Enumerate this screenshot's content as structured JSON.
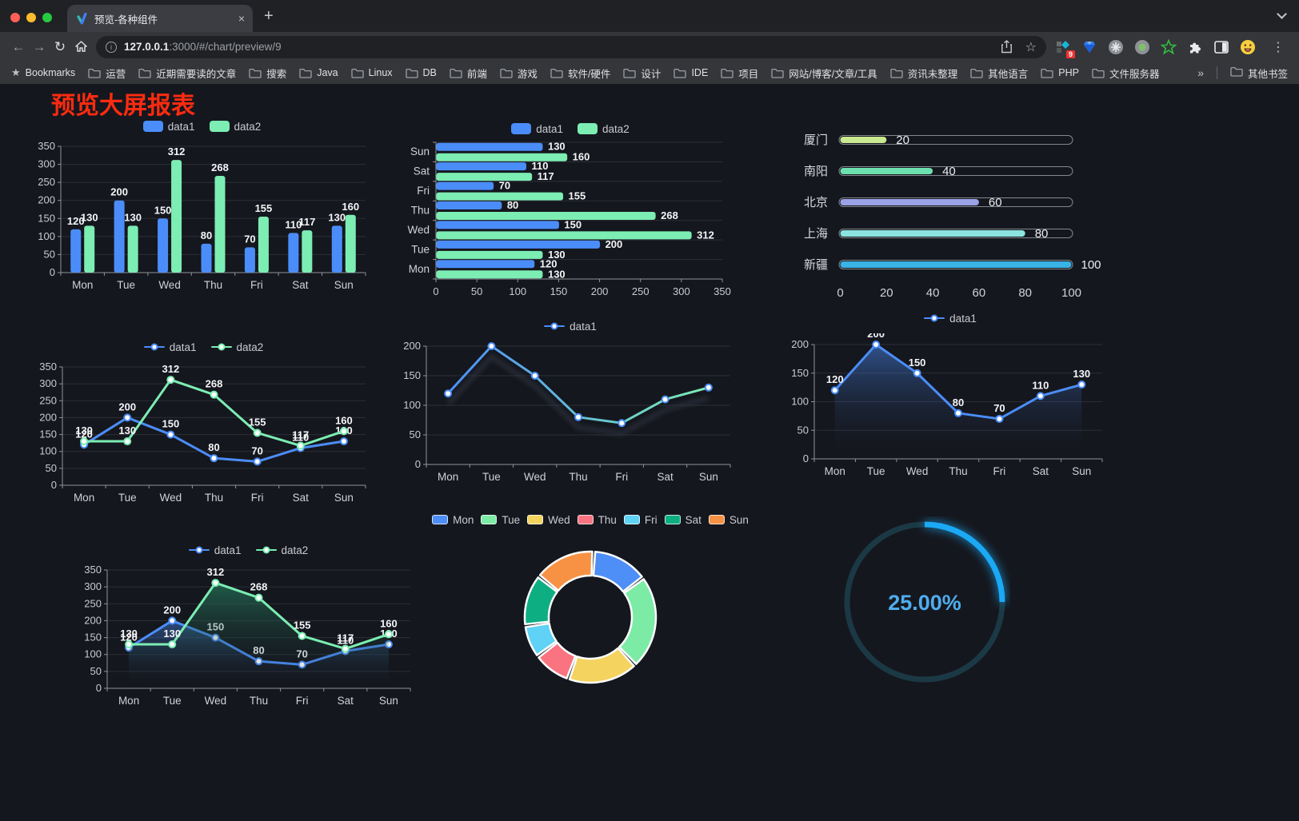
{
  "browser": {
    "tab_title": "预览-各种组件",
    "close_glyph": "×",
    "new_tab_glyph": "+",
    "back_glyph": "←",
    "forward_glyph": "→",
    "reload_glyph": "↻",
    "url_host": "127.0.0.1",
    "url_rest": ":3000/#/chart/preview/9",
    "star_glyph": "☆",
    "menu_glyph": "⋮",
    "ext_badge": "9",
    "bookmarks_star": "★",
    "bookmarks_label": "Bookmarks",
    "folders": [
      "运营",
      "近期需要读的文章",
      "搜索",
      "Java",
      "Linux",
      "DB",
      "前端",
      "游戏",
      "软件/硬件",
      "设计",
      "IDE",
      "项目",
      "网站/博客/文章/工具",
      "资讯未整理",
      "其他语言",
      "PHP",
      "文件服务器"
    ],
    "overflow_glyph": "»",
    "other_bookmarks": "其他书签"
  },
  "page": {
    "title": "预览大屏报表",
    "title_color": "#FB2B10",
    "background": "#15171E"
  },
  "chart_data": [
    {
      "id": "grouped-bar",
      "type": "bar",
      "categories": [
        "Mon",
        "Tue",
        "Wed",
        "Thu",
        "Fri",
        "Sat",
        "Sun"
      ],
      "series": [
        {
          "name": "data1",
          "color": "#4B8DF8",
          "values": [
            120,
            200,
            150,
            80,
            70,
            110,
            130
          ]
        },
        {
          "name": "data2",
          "color": "#7CEDB3",
          "values": [
            130,
            130,
            312,
            268,
            155,
            117,
            160
          ]
        }
      ],
      "ylim": [
        0,
        350
      ],
      "yticks": [
        0,
        50,
        100,
        150,
        200,
        250,
        300,
        350
      ],
      "legend_position": "top",
      "value_labels": true,
      "grid": true
    },
    {
      "id": "grouped-hbar",
      "type": "hbar",
      "categories": [
        "Mon",
        "Tue",
        "Wed",
        "Thu",
        "Fri",
        "Sat",
        "Sun"
      ],
      "series": [
        {
          "name": "data1",
          "color": "#4B8DF8",
          "values": [
            120,
            200,
            150,
            80,
            70,
            110,
            130
          ]
        },
        {
          "name": "data2",
          "color": "#7CEDB3",
          "values": [
            130,
            130,
            312,
            268,
            155,
            117,
            160
          ]
        }
      ],
      "xlim": [
        0,
        350
      ],
      "xticks": [
        0,
        50,
        100,
        150,
        200,
        250,
        300,
        350
      ],
      "legend_position": "top",
      "value_labels": true,
      "grid": true
    },
    {
      "id": "city-progress",
      "type": "progress",
      "rows": [
        {
          "label": "厦门",
          "value": 20,
          "color": "#C9E88F"
        },
        {
          "label": "南阳",
          "value": 40,
          "color": "#6CE0AE"
        },
        {
          "label": "北京",
          "value": 60,
          "color": "#9AA3E6"
        },
        {
          "label": "上海",
          "value": 80,
          "color": "#8BE3DF"
        },
        {
          "label": "新疆",
          "value": 100,
          "color": "#39B3E6"
        }
      ],
      "xlim": [
        0,
        100
      ],
      "xticks": [
        0,
        20,
        40,
        60,
        80,
        100
      ]
    },
    {
      "id": "multi-line",
      "type": "line",
      "categories": [
        "Mon",
        "Tue",
        "Wed",
        "Thu",
        "Fri",
        "Sat",
        "Sun"
      ],
      "series": [
        {
          "name": "data1",
          "color": "#4B8DF8",
          "values": [
            120,
            200,
            150,
            80,
            70,
            110,
            130
          ]
        },
        {
          "name": "data2",
          "color": "#7CEDB3",
          "values": [
            130,
            130,
            312,
            268,
            155,
            117,
            160
          ]
        }
      ],
      "ylim": [
        0,
        350
      ],
      "yticks": [
        0,
        50,
        100,
        150,
        200,
        250,
        300,
        350
      ],
      "legend_position": "top",
      "value_labels": true,
      "grid": true
    },
    {
      "id": "gradient-line",
      "type": "line",
      "categories": [
        "Mon",
        "Tue",
        "Wed",
        "Thu",
        "Fri",
        "Sat",
        "Sun"
      ],
      "series": [
        {
          "name": "data1",
          "color": "#4B8DF8",
          "gradient": [
            "#4B8DF8",
            "#7CEDB3"
          ],
          "values": [
            120,
            200,
            150,
            80,
            70,
            110,
            130
          ]
        }
      ],
      "ylim": [
        0,
        200
      ],
      "yticks": [
        0,
        50,
        100,
        150,
        200
      ],
      "legend_position": "top",
      "value_labels": false,
      "shadow": true,
      "grid": true
    },
    {
      "id": "area-line",
      "type": "line",
      "categories": [
        "Mon",
        "Tue",
        "Wed",
        "Thu",
        "Fri",
        "Sat",
        "Sun"
      ],
      "series": [
        {
          "name": "data1",
          "color": "#4B8DF8",
          "area": "rgba(75,141,248,0.5)",
          "values": [
            120,
            200,
            150,
            80,
            70,
            110,
            130
          ]
        }
      ],
      "ylim": [
        0,
        200
      ],
      "yticks": [
        0,
        50,
        100,
        150,
        200
      ],
      "legend_position": "top",
      "value_labels": true,
      "grid": true
    },
    {
      "id": "multi-area",
      "type": "line",
      "categories": [
        "Mon",
        "Tue",
        "Wed",
        "Thu",
        "Fri",
        "Sat",
        "Sun"
      ],
      "series": [
        {
          "name": "data1",
          "color": "#4B8DF8",
          "area": "rgba(75,141,248,0.45)",
          "values": [
            120,
            200,
            150,
            80,
            70,
            110,
            130
          ]
        },
        {
          "name": "data2",
          "color": "#7CEDB3",
          "area": "rgba(42,150,110,0.55)",
          "values": [
            130,
            130,
            312,
            268,
            155,
            117,
            160
          ]
        }
      ],
      "ylim": [
        0,
        350
      ],
      "yticks": [
        0,
        50,
        100,
        150,
        200,
        250,
        300,
        350
      ],
      "legend_position": "top",
      "value_labels": true,
      "grid": true
    },
    {
      "id": "week-donut",
      "type": "donut",
      "legend_position": "top",
      "items": [
        {
          "label": "Mon",
          "value": 120,
          "color": "#4E8EF7"
        },
        {
          "label": "Tue",
          "value": 200,
          "color": "#7CEBA6"
        },
        {
          "label": "Wed",
          "value": 150,
          "color": "#F5D35F"
        },
        {
          "label": "Thu",
          "value": 80,
          "color": "#F97381"
        },
        {
          "label": "Fri",
          "value": 70,
          "color": "#5FD2F6"
        },
        {
          "label": "Sat",
          "value": 110,
          "color": "#0EAE83"
        },
        {
          "label": "Sun",
          "value": 130,
          "color": "#F79244"
        }
      ]
    },
    {
      "id": "percent-gauge",
      "type": "gauge",
      "value": 25,
      "label": "25.00%",
      "color": "#1BA9F5",
      "track": "#1B3945",
      "text_color": "#4FACEE"
    }
  ]
}
